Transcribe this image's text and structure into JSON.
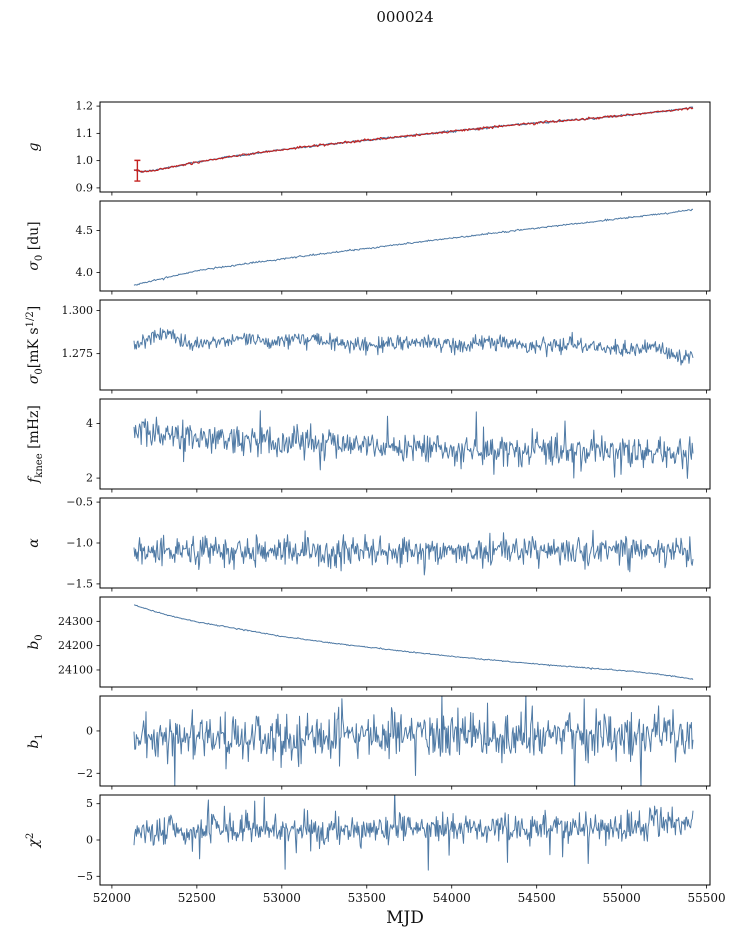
{
  "title": "000024",
  "xlabel": "MJD",
  "colors": {
    "line": "#4f7aa5",
    "overlay": "#c4211f",
    "axis": "#000000"
  },
  "x_axis": {
    "lim": [
      51930,
      55520
    ],
    "ticks": [
      52000,
      52500,
      53000,
      53500,
      54000,
      54500,
      55000,
      55500
    ],
    "tick_labels": [
      "52000",
      "52500",
      "53000",
      "53500",
      "54000",
      "54500",
      "55000",
      "55500"
    ]
  },
  "chart_data": [
    {
      "name": "g",
      "type": "line",
      "ylabel_segments": [
        {
          "t": "g",
          "italic": true
        }
      ],
      "ylim": [
        0.885,
        1.215
      ],
      "yticks": [
        0.9,
        1.0,
        1.1,
        1.2
      ],
      "ytick_labels": [
        "0.9",
        "1.0",
        "1.1",
        "1.2"
      ],
      "errorbar": {
        "x": 52150,
        "y": 0.963,
        "yerr": 0.038,
        "color": "#c4211f"
      },
      "series": [
        {
          "name": "g-blue",
          "color": "#4f7aa5",
          "noise": 0.0015,
          "width": 1.3,
          "n": 500,
          "keypoints": [
            [
              52130,
              0.965
            ],
            [
              52180,
              0.959
            ],
            [
              52260,
              0.966
            ],
            [
              52400,
              0.982
            ],
            [
              52550,
              1.0
            ],
            [
              52700,
              1.015
            ],
            [
              52900,
              1.032
            ],
            [
              53100,
              1.048
            ],
            [
              53300,
              1.062
            ],
            [
              53500,
              1.075
            ],
            [
              53700,
              1.088
            ],
            [
              53900,
              1.101
            ],
            [
              54100,
              1.114
            ],
            [
              54300,
              1.127
            ],
            [
              54500,
              1.138
            ],
            [
              54700,
              1.148
            ],
            [
              54900,
              1.159
            ],
            [
              55050,
              1.168
            ],
            [
              55200,
              1.178
            ],
            [
              55320,
              1.186
            ],
            [
              55420,
              1.195
            ]
          ]
        },
        {
          "name": "g-red-overlay",
          "color": "#c4211f",
          "noise": 0.0022,
          "width": 1.1,
          "n": 500,
          "keypoints": [
            [
              52130,
              0.965
            ],
            [
              52180,
              0.959
            ],
            [
              52260,
              0.966
            ],
            [
              52400,
              0.982
            ],
            [
              52550,
              1.0
            ],
            [
              52700,
              1.015
            ],
            [
              52900,
              1.032
            ],
            [
              53100,
              1.048
            ],
            [
              53300,
              1.062
            ],
            [
              53500,
              1.075
            ],
            [
              53700,
              1.088
            ],
            [
              53900,
              1.101
            ],
            [
              54100,
              1.114
            ],
            [
              54300,
              1.127
            ],
            [
              54500,
              1.138
            ],
            [
              54700,
              1.148
            ],
            [
              54900,
              1.159
            ],
            [
              55050,
              1.168
            ],
            [
              55200,
              1.178
            ],
            [
              55320,
              1.186
            ],
            [
              55420,
              1.195
            ]
          ]
        }
      ]
    },
    {
      "name": "sigma0_du",
      "type": "line",
      "ylabel_segments": [
        {
          "t": "σ",
          "italic": true
        },
        {
          "t": "0",
          "sub": true
        },
        {
          "t": " [du]"
        }
      ],
      "ylim": [
        3.78,
        4.85
      ],
      "yticks": [
        4.0,
        4.5
      ],
      "ytick_labels": [
        "4.0",
        "4.5"
      ],
      "series": [
        {
          "name": "sigma0-du",
          "color": "#4f7aa5",
          "noise": 0.005,
          "width": 1,
          "n": 550,
          "keypoints": [
            [
              52130,
              3.85
            ],
            [
              52300,
              3.93
            ],
            [
              52500,
              4.02
            ],
            [
              52700,
              4.08
            ],
            [
              53000,
              4.16
            ],
            [
              53300,
              4.24
            ],
            [
              53600,
              4.31
            ],
            [
              54000,
              4.41
            ],
            [
              54300,
              4.48
            ],
            [
              54600,
              4.55
            ],
            [
              54900,
              4.62
            ],
            [
              55100,
              4.67
            ],
            [
              55250,
              4.7
            ],
            [
              55420,
              4.75
            ]
          ]
        }
      ]
    },
    {
      "name": "sigma0_mK",
      "type": "line",
      "ylabel_segments": [
        {
          "t": "σ",
          "italic": true
        },
        {
          "t": "0",
          "sub": true
        },
        {
          "t": "[mK s"
        },
        {
          "t": "1/2",
          "sup": true
        },
        {
          "t": "]"
        }
      ],
      "ylim": [
        1.254,
        1.306
      ],
      "yticks": [
        1.275,
        1.3
      ],
      "ytick_labels": [
        "1.275",
        "1.300"
      ],
      "series": [
        {
          "name": "sigma0-mK",
          "color": "#4f7aa5",
          "noise": 0.0022,
          "width": 1,
          "n": 700,
          "keypoints": [
            [
              52130,
              1.279
            ],
            [
              52250,
              1.285
            ],
            [
              52350,
              1.287
            ],
            [
              52450,
              1.28
            ],
            [
              52600,
              1.282
            ],
            [
              52800,
              1.284
            ],
            [
              53000,
              1.281
            ],
            [
              53100,
              1.285
            ],
            [
              53300,
              1.281
            ],
            [
              53500,
              1.28
            ],
            [
              53700,
              1.282
            ],
            [
              54000,
              1.28
            ],
            [
              54200,
              1.282
            ],
            [
              54500,
              1.279
            ],
            [
              54700,
              1.281
            ],
            [
              55000,
              1.277
            ],
            [
              55200,
              1.28
            ],
            [
              55350,
              1.272
            ],
            [
              55420,
              1.274
            ]
          ]
        }
      ]
    },
    {
      "name": "f_knee",
      "type": "line",
      "ylabel_segments": [
        {
          "t": "f",
          "italic": true
        },
        {
          "t": "knee",
          "sub": true
        },
        {
          "t": " [mHz]"
        }
      ],
      "ylim": [
        1.6,
        4.9
      ],
      "yticks": [
        2,
        4
      ],
      "ytick_labels": [
        "2",
        "4"
      ],
      "series": [
        {
          "name": "f-knee",
          "color": "#4f7aa5",
          "noise": 0.28,
          "spikes": true,
          "width": 1,
          "n": 700,
          "keypoints": [
            [
              52130,
              3.8
            ],
            [
              52300,
              3.6
            ],
            [
              52500,
              3.5
            ],
            [
              52800,
              3.4
            ],
            [
              53000,
              3.35
            ],
            [
              53500,
              3.2
            ],
            [
              54000,
              3.05
            ],
            [
              54500,
              3.0
            ],
            [
              55000,
              3.0
            ],
            [
              55420,
              2.9
            ]
          ]
        }
      ]
    },
    {
      "name": "alpha",
      "type": "line",
      "ylabel_segments": [
        {
          "t": "α",
          "italic": true
        }
      ],
      "ylim": [
        -1.55,
        -0.45
      ],
      "yticks": [
        -1.5,
        -1.0,
        -0.5
      ],
      "ytick_labels": [
        "−1.5",
        "−1.0",
        "−0.5"
      ],
      "series": [
        {
          "name": "alpha",
          "color": "#4f7aa5",
          "noise": 0.09,
          "width": 1,
          "n": 700,
          "keypoints": [
            [
              52130,
              -1.1
            ],
            [
              53000,
              -1.11
            ],
            [
              54000,
              -1.1
            ],
            [
              55000,
              -1.1
            ],
            [
              55420,
              -1.1
            ]
          ]
        }
      ]
    },
    {
      "name": "b0",
      "type": "line",
      "ylabel_segments": [
        {
          "t": "b",
          "italic": true
        },
        {
          "t": "0",
          "sub": true
        }
      ],
      "ylim": [
        24030,
        24400
      ],
      "yticks": [
        24100,
        24200,
        24300
      ],
      "ytick_labels": [
        "24100",
        "24200",
        "24300"
      ],
      "series": [
        {
          "name": "b0",
          "color": "#4f7aa5",
          "noise": 1.2,
          "width": 1,
          "n": 550,
          "keypoints": [
            [
              52130,
              24368
            ],
            [
              52300,
              24330
            ],
            [
              52500,
              24298
            ],
            [
              52800,
              24262
            ],
            [
              53000,
              24238
            ],
            [
              53300,
              24210
            ],
            [
              53600,
              24186
            ],
            [
              54000,
              24156
            ],
            [
              54400,
              24130
            ],
            [
              54800,
              24108
            ],
            [
              55000,
              24098
            ],
            [
              55200,
              24085
            ],
            [
              55420,
              24062
            ]
          ]
        }
      ]
    },
    {
      "name": "b1",
      "type": "line",
      "ylabel_segments": [
        {
          "t": "b",
          "italic": true
        },
        {
          "t": "1",
          "sub": true
        }
      ],
      "ylim": [
        -2.6,
        1.65
      ],
      "yticks": [
        -2,
        0
      ],
      "ytick_labels": [
        "−2",
        "0"
      ],
      "series": [
        {
          "name": "b1",
          "color": "#4f7aa5",
          "noise": 0.55,
          "spikes": true,
          "width": 1,
          "n": 700,
          "keypoints": [
            [
              52130,
              -0.4
            ],
            [
              53000,
              -0.35
            ],
            [
              53500,
              -0.2
            ],
            [
              54000,
              -0.3
            ],
            [
              54500,
              -0.25
            ],
            [
              55000,
              -0.2
            ],
            [
              55420,
              -0.1
            ]
          ]
        }
      ]
    },
    {
      "name": "chi2",
      "type": "line",
      "ylabel_segments": [
        {
          "t": "χ",
          "italic": true
        },
        {
          "t": "2",
          "sup": true
        }
      ],
      "ylim": [
        -6.2,
        6.2
      ],
      "yticks": [
        -5,
        0,
        5
      ],
      "ytick_labels": [
        "−5",
        "0",
        "5"
      ],
      "series": [
        {
          "name": "chi2",
          "color": "#4f7aa5",
          "noise": 1.0,
          "spikes": true,
          "width": 1,
          "n": 700,
          "keypoints": [
            [
              52130,
              1.2
            ],
            [
              52500,
              1.5
            ],
            [
              53000,
              1.4
            ],
            [
              53500,
              1.5
            ],
            [
              54000,
              1.5
            ],
            [
              54500,
              1.6
            ],
            [
              55000,
              1.7
            ],
            [
              55420,
              2.4
            ]
          ]
        }
      ]
    }
  ]
}
